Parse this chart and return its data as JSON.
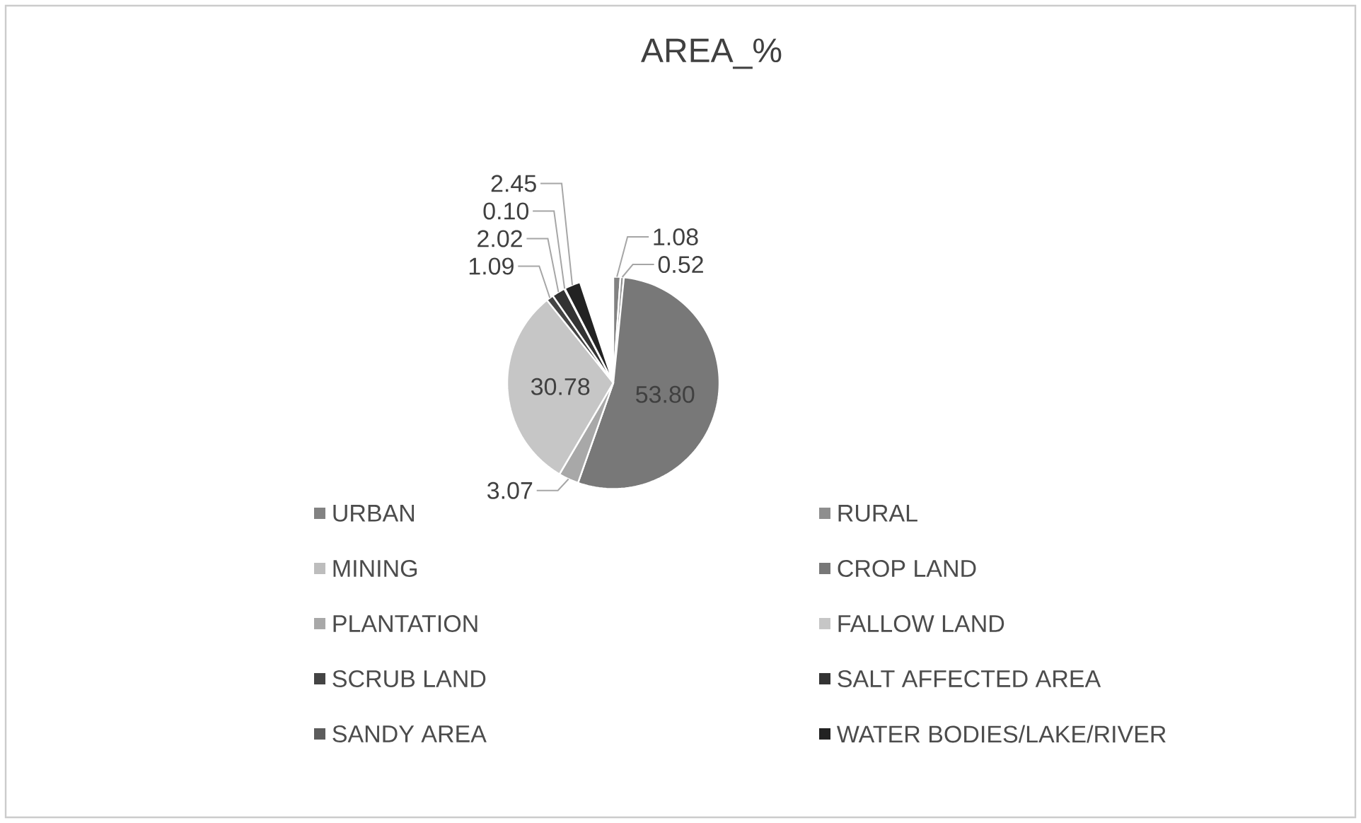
{
  "chart_data": {
    "type": "pie",
    "title": "AREA_%",
    "categories": [
      "URBAN",
      "RURAL",
      "MINING",
      "CROP LAND",
      "PLANTATION",
      "FALLOW LAND",
      "SCRUB LAND",
      "SALT AFFECTED AREA",
      "SANDY AREA",
      "WATER BODIES/LAKE/RIVER"
    ],
    "values": [
      1.08,
      0.52,
      null,
      53.8,
      3.07,
      30.78,
      1.09,
      2.02,
      0.1,
      2.45
    ],
    "value_labels": [
      "1.08",
      "0.52",
      null,
      "53.80",
      "3.07",
      "30.78",
      "1.09",
      "2.02",
      "0.10",
      "2.45"
    ],
    "colors": [
      "#828282",
      "#8e8e8e",
      "#bdbdbd",
      "#787878",
      "#a8a8a8",
      "#c6c6c6",
      "#444444",
      "#333333",
      "#5c5c5c",
      "#222222"
    ],
    "legend": "bottom"
  }
}
